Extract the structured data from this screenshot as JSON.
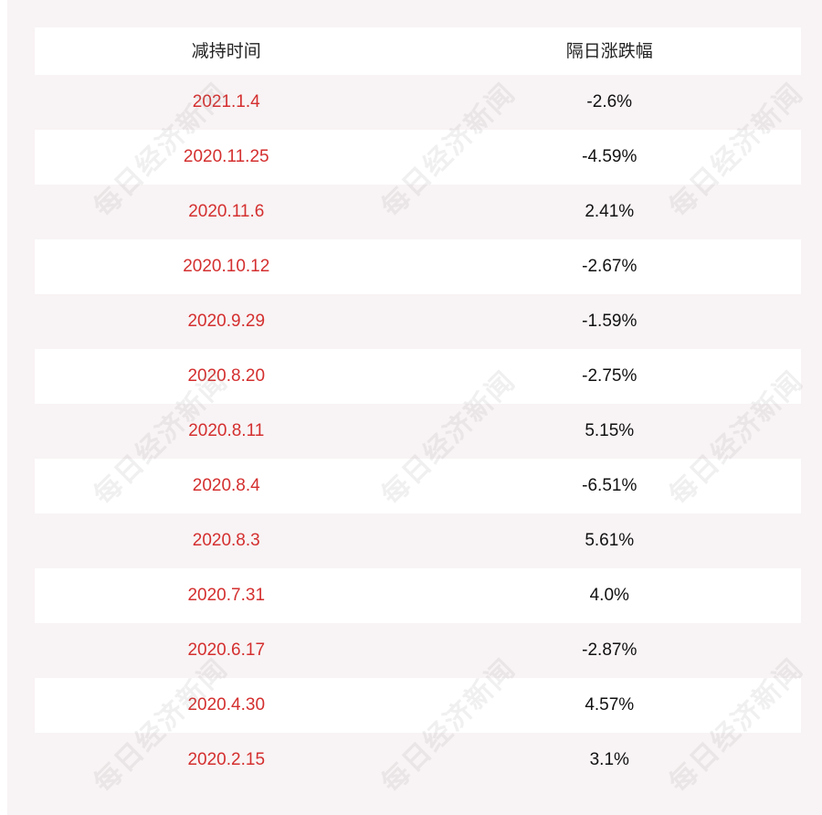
{
  "header": {
    "col_date": "减持时间",
    "col_change": "隔日涨跌幅"
  },
  "rows": [
    {
      "date": "2021.1.4",
      "change": "-2.6%"
    },
    {
      "date": "2020.11.25",
      "change": "-4.59%"
    },
    {
      "date": "2020.11.6",
      "change": "2.41%"
    },
    {
      "date": "2020.10.12",
      "change": "-2.67%"
    },
    {
      "date": "2020.9.29",
      "change": "-1.59%"
    },
    {
      "date": "2020.8.20",
      "change": "-2.75%"
    },
    {
      "date": "2020.8.11",
      "change": "5.15%"
    },
    {
      "date": "2020.8.4",
      "change": "-6.51%"
    },
    {
      "date": "2020.8.3",
      "change": "5.61%"
    },
    {
      "date": "2020.7.31",
      "change": "4.0%"
    },
    {
      "date": "2020.6.17",
      "change": "-2.87%"
    },
    {
      "date": "2020.4.30",
      "change": "4.57%"
    },
    {
      "date": "2020.2.15",
      "change": "3.1%"
    }
  ],
  "watermark": "每日经济新闻",
  "colors": {
    "date_text": "#d42f2f",
    "change_text": "#111111",
    "background": "#f8f3f4",
    "row_alt": "#ffffff"
  }
}
